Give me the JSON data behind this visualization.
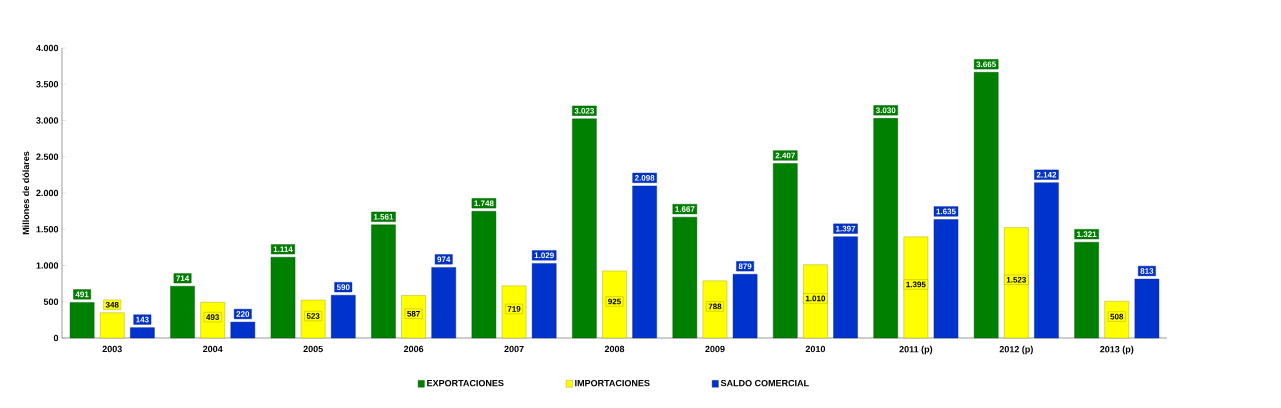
{
  "chart_data": {
    "type": "bar",
    "ylabel": "Millones de dólares",
    "categories": [
      "2003",
      "2004",
      "2005",
      "2006",
      "2007",
      "2008",
      "2009",
      "2010",
      "2011 (p)",
      "2012 (p)",
      "2013 (p)"
    ],
    "series": [
      {
        "name": "EXPORTACIONES",
        "color": "#008000",
        "values": [
          491,
          714,
          1114,
          1561,
          1748,
          3023,
          1667,
          2407,
          3030,
          3665,
          1321
        ],
        "value_labels": [
          "491",
          "714",
          "1.114",
          "1.561",
          "1.748",
          "3.023",
          "1.667",
          "2.407",
          "3.030",
          "3.665",
          "1.321"
        ]
      },
      {
        "name": "IMPORTACIONES",
        "color": "#ffff00",
        "values": [
          348,
          493,
          523,
          587,
          719,
          925,
          788,
          1010,
          1395,
          1523,
          508
        ],
        "value_labels": [
          "348",
          "493",
          "523",
          "587",
          "719",
          "925",
          "788",
          "1.010",
          "1.395",
          "1.523",
          "508"
        ]
      },
      {
        "name": "SALDO COMERCIAL",
        "color": "#0033cc",
        "values": [
          143,
          220,
          590,
          974,
          1029,
          2098,
          879,
          1397,
          1635,
          2142,
          813
        ],
        "value_labels": [
          "143",
          "220",
          "590",
          "974",
          "1.029",
          "2.098",
          "879",
          "1.397",
          "1.635",
          "2.142",
          "813"
        ]
      }
    ],
    "ylim": [
      0,
      4000
    ],
    "yticks": [
      0,
      500,
      {
        "value": 1000,
        "label": "1.000"
      },
      {
        "value": 1500,
        "label": "1.500"
      },
      {
        "value": 2000,
        "label": "2.000"
      },
      {
        "value": 2500,
        "label": "2.500"
      },
      {
        "value": 3000,
        "label": "3.000"
      },
      {
        "value": 3500,
        "label": "3.500"
      },
      {
        "value": 4000,
        "label": "4.000"
      }
    ],
    "grid": false,
    "legend": "bottom"
  }
}
